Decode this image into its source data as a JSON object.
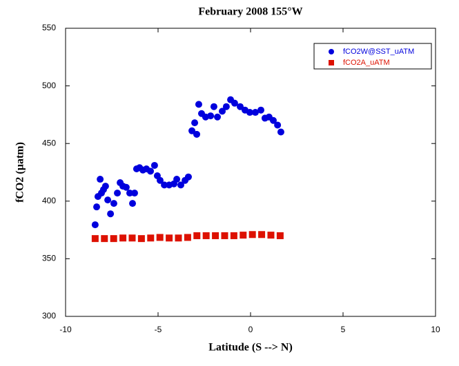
{
  "chart_data": {
    "type": "scatter",
    "title": "February 2008 155°W",
    "x_label": "Latitude (S --> N)",
    "y_label": "fCO2 (µatm)",
    "xlim": [
      -10,
      10
    ],
    "xticks": [
      -10,
      -5,
      0,
      5,
      10
    ],
    "ylim": [
      300,
      550
    ],
    "yticks": [
      300,
      350,
      400,
      450,
      500,
      550
    ],
    "legend": "upper right",
    "series": [
      {
        "name": "fCO2W@SST_uATM",
        "color": "#0000dd",
        "marker": "circle",
        "x": [
          -8.4,
          -8.32,
          -8.25,
          -8.13,
          -8.06,
          -7.95,
          -7.84,
          -7.72,
          -7.57,
          -7.39,
          -7.2,
          -7.05,
          -6.9,
          -6.72,
          -6.53,
          -6.38,
          -6.27,
          -6.16,
          -6.0,
          -5.82,
          -5.63,
          -5.41,
          -5.19,
          -5.04,
          -4.89,
          -4.66,
          -4.4,
          -4.14,
          -3.99,
          -3.77,
          -3.54,
          -3.36,
          -3.17,
          -3.02,
          -2.91,
          -2.8,
          -2.65,
          -2.43,
          -2.16,
          -1.98,
          -1.79,
          -1.53,
          -1.31,
          -1.08,
          -0.86,
          -0.56,
          -0.3,
          -0.04,
          0.26,
          0.56,
          0.78,
          1.0,
          1.23,
          1.46,
          1.64
        ],
        "values": [
          379.5,
          395,
          404,
          419,
          407,
          410,
          413,
          401,
          389,
          398,
          407,
          416,
          413,
          412,
          407,
          398,
          407,
          428,
          429,
          427,
          428,
          426,
          431,
          422,
          418,
          414,
          414,
          415,
          419,
          414,
          418,
          421,
          461,
          468,
          458,
          484,
          476,
          473,
          474,
          482,
          473,
          478,
          482,
          488,
          485,
          482,
          479,
          477,
          477,
          479,
          472,
          473,
          470,
          466,
          460
        ]
      },
      {
        "name": "fCO2A_uATM",
        "color": "#dd1100",
        "marker": "square",
        "x": [
          -8.4,
          -7.9,
          -7.4,
          -6.9,
          -6.4,
          -5.9,
          -5.4,
          -4.9,
          -4.4,
          -3.9,
          -3.4,
          -2.9,
          -2.4,
          -1.9,
          -1.4,
          -0.9,
          -0.4,
          0.1,
          0.6,
          1.1,
          1.6
        ],
        "values": [
          367.5,
          367.5,
          367.5,
          368,
          368,
          367.5,
          368,
          368.5,
          368,
          368,
          368.5,
          370,
          370,
          370,
          370,
          370,
          370.5,
          371,
          371,
          370.5,
          370
        ]
      }
    ]
  }
}
